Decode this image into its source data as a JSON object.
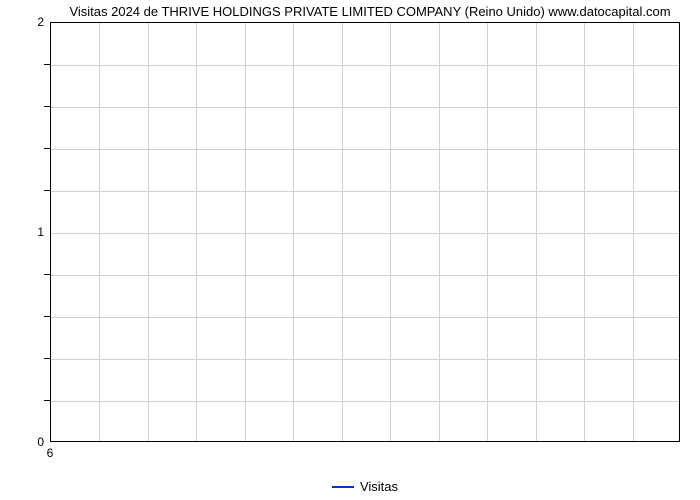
{
  "chart": {
    "type": "line",
    "title": "Visitas 2024 de THRIVE HOLDINGS PRIVATE LIMITED COMPANY (Reino Unido) www.datocapital.com",
    "title_fontsize": 13,
    "title_color": "#000000",
    "background_color": "#ffffff",
    "plot_border_color": "#000000",
    "grid_color": "#d0d0d0",
    "y": {
      "min": 0,
      "max": 2,
      "major_ticks": [
        0,
        1,
        2
      ],
      "minor_ticks": [
        0.2,
        0.4,
        0.6,
        0.8,
        1.2,
        1.4,
        1.6,
        1.8
      ],
      "label_fontsize": 12,
      "label_color": "#000000"
    },
    "x": {
      "ticks": [
        6
      ],
      "n_gridlines": 12,
      "label_fontsize": 12,
      "label_color": "#000000"
    },
    "series": [
      {
        "name": "Visitas",
        "color": "#0033cc",
        "line_width": 2,
        "data": []
      }
    ],
    "legend": {
      "position": "bottom-center",
      "label": "Visitas",
      "color": "#0033cc",
      "fontsize": 13
    }
  }
}
